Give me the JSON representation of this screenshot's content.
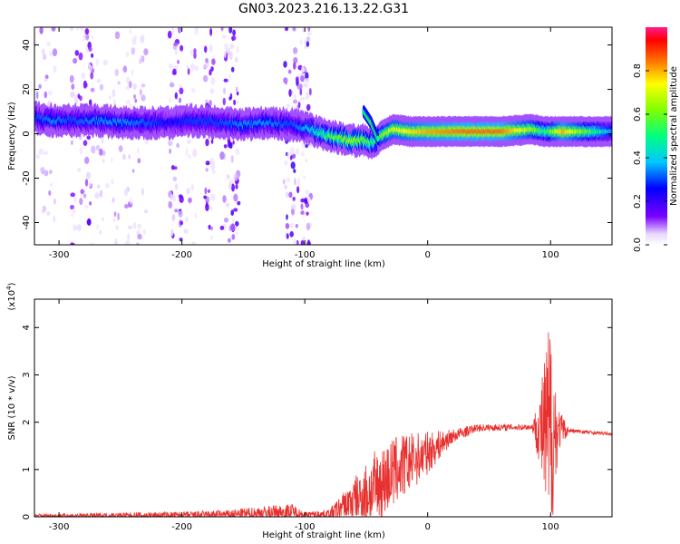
{
  "figure": {
    "title": "GN03.2023.216.13.22.G31"
  },
  "chart_data": [
    {
      "type": "heatmap",
      "xlabel": "Height of straight line (km)",
      "ylabel": "Frequency (Hz)",
      "xlim": [
        -320,
        150
      ],
      "ylim": [
        -50,
        48
      ],
      "xticks": [
        -300,
        -200,
        -100,
        0,
        100
      ],
      "yticks": [
        -40,
        -20,
        0,
        20,
        40
      ],
      "colorbar": {
        "label": "Normalized spectral amplitude",
        "range": [
          0.0,
          1.0
        ],
        "ticks": [
          "0.0",
          "0.2",
          "0.4",
          "0.6",
          "0.8"
        ]
      },
      "grid": false,
      "scatter_columns": [
        {
          "x_range": [
            -320,
            -302
          ],
          "density": 0.35
        },
        {
          "x_range": [
            -290,
            -272
          ],
          "density": 0.75
        },
        {
          "x_range": [
            -270,
            -228
          ],
          "density": 0.35
        },
        {
          "x_range": [
            -210,
            -200
          ],
          "density": 0.9
        },
        {
          "x_range": [
            -197,
            -188
          ],
          "density": 0.5
        },
        {
          "x_range": [
            -182,
            -174
          ],
          "density": 0.85
        },
        {
          "x_range": [
            -168,
            -163
          ],
          "density": 0.6
        },
        {
          "x_range": [
            -163,
            -153
          ],
          "density": 0.95
        },
        {
          "x_range": [
            -117,
            -95
          ],
          "density": 0.95
        }
      ],
      "ridge": [
        {
          "x": -318,
          "y": 7,
          "amp": 0.3
        },
        {
          "x": -305,
          "y": 6,
          "amp": 0.35
        },
        {
          "x": -290,
          "y": 6,
          "amp": 0.3
        },
        {
          "x": -270,
          "y": 6,
          "amp": 0.35
        },
        {
          "x": -245,
          "y": 5,
          "amp": 0.35
        },
        {
          "x": -222,
          "y": 5,
          "amp": 0.3
        },
        {
          "x": -210,
          "y": 5,
          "amp": 0.25
        },
        {
          "x": -192,
          "y": 6,
          "amp": 0.3
        },
        {
          "x": -170,
          "y": 5,
          "amp": 0.3
        },
        {
          "x": -150,
          "y": 4,
          "amp": 0.35
        },
        {
          "x": -130,
          "y": 5,
          "amp": 0.35
        },
        {
          "x": -110,
          "y": 4,
          "amp": 0.3
        },
        {
          "x": -95,
          "y": 2,
          "amp": 0.4
        },
        {
          "x": -80,
          "y": -1,
          "amp": 0.55
        },
        {
          "x": -62,
          "y": -3,
          "amp": 0.65
        },
        {
          "x": -52,
          "y": -3,
          "amp": 0.6
        },
        {
          "x": -44,
          "y": -4,
          "amp": 0.5
        },
        {
          "x": -38,
          "y": -1,
          "amp": 0.6
        },
        {
          "x": -28,
          "y": 2,
          "amp": 0.7
        },
        {
          "x": -15,
          "y": 1,
          "amp": 0.75
        },
        {
          "x": 0,
          "y": 1,
          "amp": 0.8
        },
        {
          "x": 30,
          "y": 1,
          "amp": 0.85
        },
        {
          "x": 60,
          "y": 1,
          "amp": 0.85
        },
        {
          "x": 85,
          "y": 2,
          "amp": 0.65
        },
        {
          "x": 95,
          "y": 1,
          "amp": 0.5
        },
        {
          "x": 110,
          "y": 1,
          "amp": 0.8
        },
        {
          "x": 150,
          "y": 1,
          "amp": 0.35
        }
      ],
      "ridge_branch": [
        {
          "x": -52,
          "y": 10,
          "amp": 0.5
        },
        {
          "x": -46,
          "y": 5,
          "amp": 0.55
        },
        {
          "x": -40,
          "y": -3,
          "amp": 0.5
        }
      ]
    },
    {
      "type": "line",
      "xlabel": "Height of straight line (km)",
      "ylabel": "SNR (10 * v/v)",
      "y_scale_label": "(x10",
      "y_scale_exponent": "4",
      "xlim": [
        -320,
        150
      ],
      "ylim": [
        0,
        4.6
      ],
      "xticks": [
        -300,
        -200,
        -100,
        0,
        100
      ],
      "yticks": [
        0,
        1,
        2,
        3,
        4
      ],
      "grid": false,
      "color": "#e8302e",
      "envelope": [
        {
          "x": -320,
          "base": 0.02,
          "amp": 0.04
        },
        {
          "x": -200,
          "base": 0.03,
          "amp": 0.08
        },
        {
          "x": -160,
          "base": 0.05,
          "amp": 0.1
        },
        {
          "x": -135,
          "base": 0.08,
          "amp": 0.15
        },
        {
          "x": -110,
          "base": 0.1,
          "amp": 0.18
        },
        {
          "x": -100,
          "base": 0.05,
          "amp": 0.05
        },
        {
          "x": -80,
          "base": 0.06,
          "amp": 0.1
        },
        {
          "x": -65,
          "base": 0.25,
          "amp": 0.4
        },
        {
          "x": -45,
          "base": 0.55,
          "amp": 0.8
        },
        {
          "x": -25,
          "base": 1.0,
          "amp": 0.75
        },
        {
          "x": 0,
          "base": 1.35,
          "amp": 0.45
        },
        {
          "x": 20,
          "base": 1.7,
          "amp": 0.15
        },
        {
          "x": 40,
          "base": 1.88,
          "amp": 0.08
        },
        {
          "x": 85,
          "base": 1.9,
          "amp": 0.06
        },
        {
          "x": 92,
          "base": 1.85,
          "amp": 0.9
        },
        {
          "x": 100,
          "base": 1.6,
          "amp": 2.9
        },
        {
          "x": 106,
          "base": 1.85,
          "amp": 0.5
        },
        {
          "x": 115,
          "base": 1.82,
          "amp": 0.05
        },
        {
          "x": 150,
          "base": 1.75,
          "amp": 0.03
        }
      ]
    }
  ]
}
